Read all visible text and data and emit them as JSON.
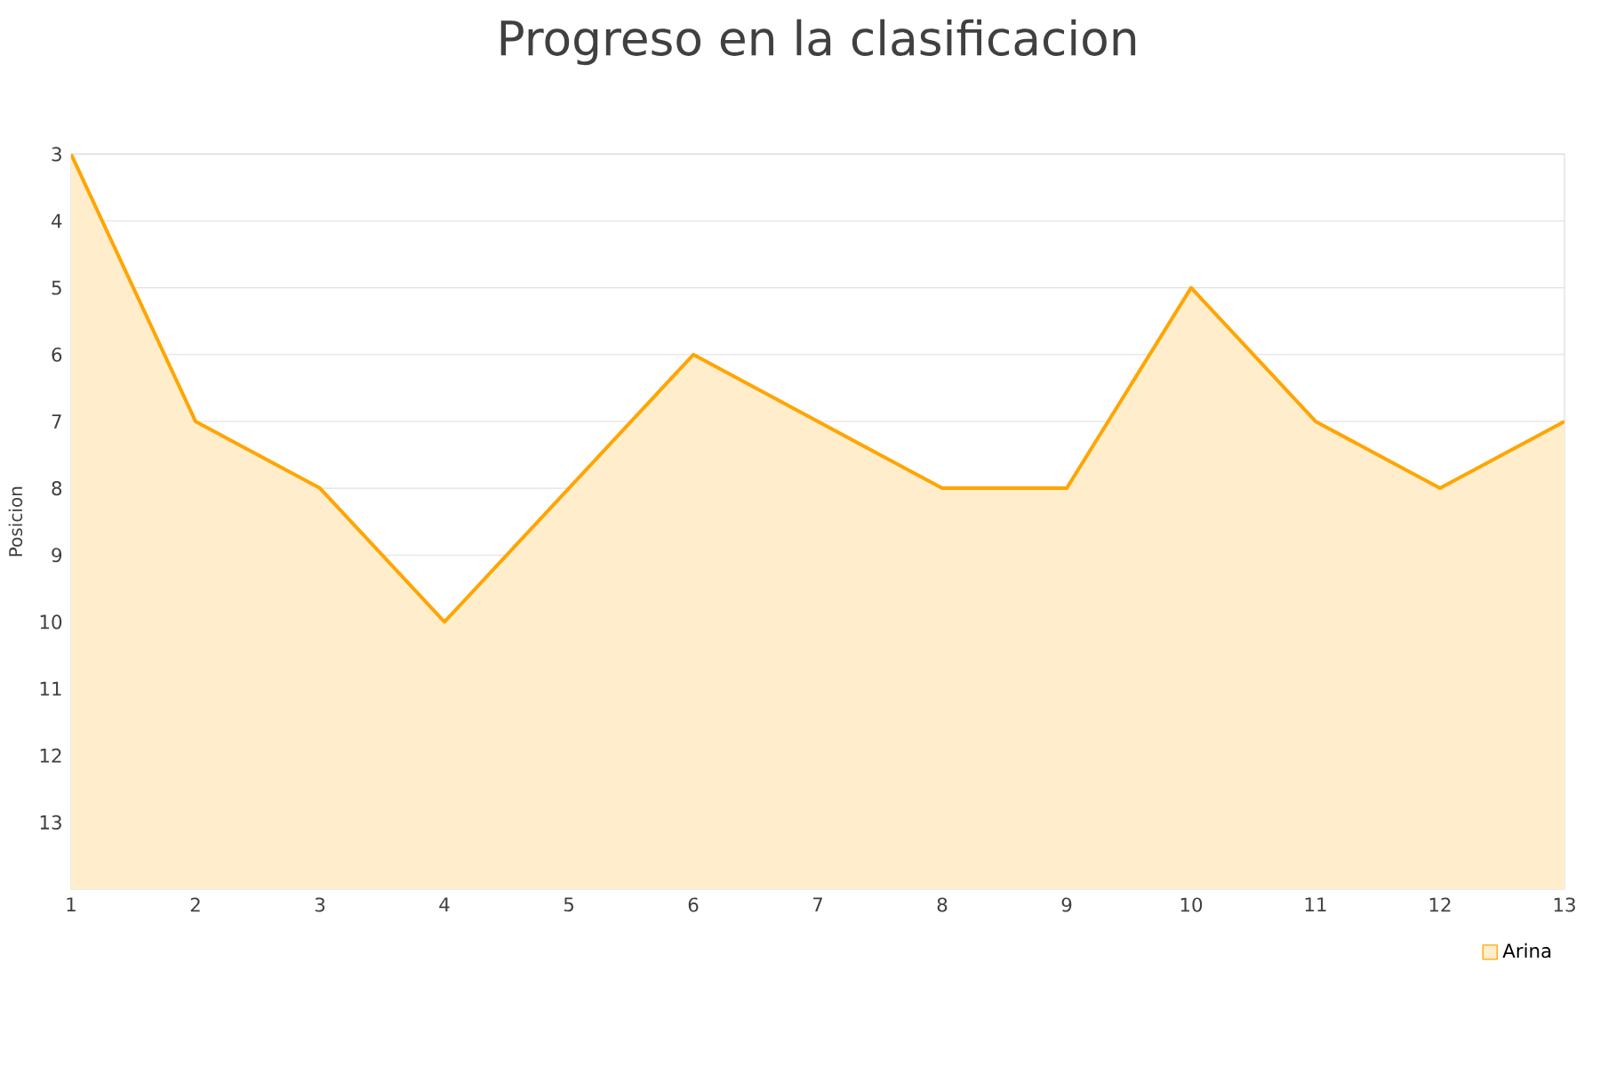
{
  "chart_data": {
    "type": "area",
    "title": "Progreso en la clasificacion",
    "ylabel": "Posicion",
    "x": [
      1,
      2,
      3,
      4,
      5,
      6,
      7,
      8,
      9,
      10,
      11,
      12,
      13
    ],
    "series": [
      {
        "name": "Arina",
        "color": "#ffa500",
        "values": [
          3,
          7,
          8,
          10,
          8,
          6,
          7,
          8,
          8,
          5,
          7,
          8,
          7
        ]
      }
    ],
    "xlim": [
      1,
      13
    ],
    "xticks": [
      1,
      2,
      3,
      4,
      5,
      6,
      7,
      8,
      9,
      10,
      11,
      12,
      13
    ],
    "ylim": [
      14,
      3
    ],
    "yticks": [
      3,
      4,
      5,
      6,
      7,
      8,
      9,
      10,
      11,
      12,
      13
    ],
    "grid": "y",
    "legend": "bottom right",
    "marker": "none"
  }
}
